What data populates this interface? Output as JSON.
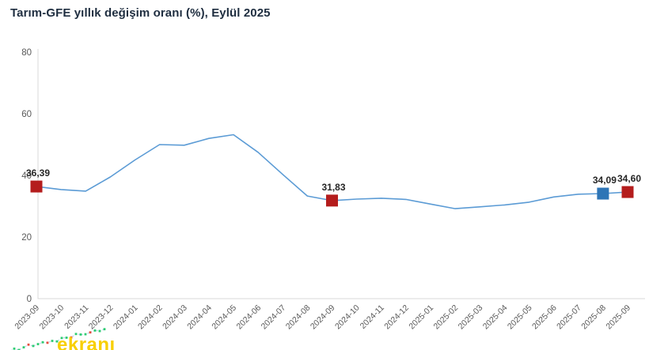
{
  "header": {
    "title": "Tarım-GFE yıllık değişim oranı (%), Eylül 2025",
    "title_color": "#1f2e40"
  },
  "chart_data": {
    "type": "line",
    "title": "Tarım-GFE yıllık değişim oranı (%), Eylül 2025",
    "x": [
      "2023-09",
      "2023-10",
      "2023-11",
      "2023-12",
      "2024-01",
      "2024-02",
      "2024-03",
      "2024-04",
      "2024-05",
      "2024-06",
      "2024-07",
      "2024-08",
      "2024-09",
      "2024-10",
      "2024-11",
      "2024-12",
      "2025-01",
      "2025-02",
      "2025-03",
      "2025-04",
      "2025-05",
      "2025-06",
      "2025-07",
      "2025-08",
      "2025-09"
    ],
    "series": [
      {
        "name": "Tarım-GFE yıllık değişim oranı (%)",
        "values": [
          36.39,
          35.4,
          34.9,
          39.5,
          45.0,
          50.0,
          49.8,
          52.0,
          53.2,
          47.5,
          40.3,
          33.3,
          31.83,
          32.3,
          32.6,
          32.2,
          30.7,
          29.2,
          29.8,
          30.4,
          31.3,
          33.0,
          33.9,
          34.09,
          34.6
        ]
      }
    ],
    "ylim": [
      0,
      80
    ],
    "yticks": [
      "0",
      "20",
      "40",
      "60",
      "80"
    ],
    "grid": false,
    "legend": "none",
    "line_color": "#5b9bd5",
    "axis_color": "#d9d9d9",
    "tick_color": "#595959",
    "annotation_text_color": "#262626",
    "annotations": [
      {
        "x": "2023-09",
        "value": 36.39,
        "label": "36,39",
        "marker_color": "#b41d1d"
      },
      {
        "x": "2024-09",
        "value": 31.83,
        "label": "31,83",
        "marker_color": "#b41d1d"
      },
      {
        "x": "2025-08",
        "value": 34.09,
        "label": "34,09",
        "marker_color": "#2e75b6"
      },
      {
        "x": "2025-09",
        "value": 34.6,
        "label": "34,60",
        "marker_color": "#b41d1d"
      }
    ]
  },
  "watermark": {
    "text": "ekranı",
    "text_color": "#f8cf00",
    "icon_colors": {
      "up": "#2ecc71",
      "down": "#e74c3c",
      "line": "#9bc2e6"
    }
  }
}
